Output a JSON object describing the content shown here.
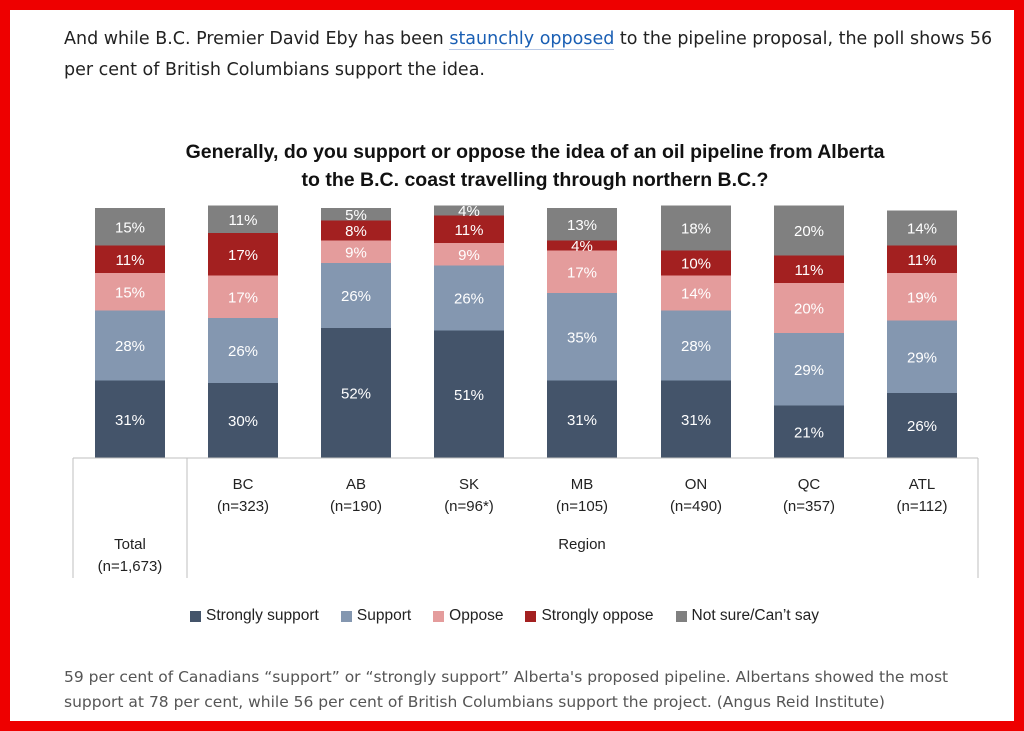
{
  "article": {
    "intro_before_link": "And while B.C. Premier David Eby has been ",
    "intro_link": "staunchly opposed",
    "intro_after_link": " to the pipeline proposal, the poll shows 56 per cent of British Columbians support the idea.",
    "caption": "59 per cent of Canadians “support” or “strongly support” Alberta's proposed pipeline. Albertans showed the most support at 78 per cent, while 56 per cent of British Columbians support the project. (Angus Reid Institute)"
  },
  "chart_data": {
    "type": "bar",
    "stacked": true,
    "title": "Generally, do you support or oppose the idea of an oil pipeline from Alberta to the B.C. coast travelling through northern B.C.?",
    "title_lines": [
      "Generally, do you support or oppose the idea of an oil pipeline from Alberta",
      "to the B.C. coast travelling through northern B.C.?"
    ],
    "categories": [
      "Total",
      "BC",
      "AB",
      "SK",
      "MB",
      "ON",
      "QC",
      "ATL"
    ],
    "category_samples": [
      "(n=1,673)",
      "(n=323)",
      "(n=190)",
      "(n=96*)",
      "(n=105)",
      "(n=490)",
      "(n=357)",
      "(n=112)"
    ],
    "group_label": "Region",
    "ylim": [
      0,
      100
    ],
    "legend_position": "bottom",
    "series": [
      {
        "name": "Strongly support",
        "color": "#44546a",
        "values": [
          31,
          30,
          52,
          51,
          31,
          31,
          21,
          26
        ]
      },
      {
        "name": "Support",
        "color": "#8497b0",
        "values": [
          28,
          26,
          26,
          26,
          35,
          28,
          29,
          29
        ]
      },
      {
        "name": "Oppose",
        "color": "#e49c9c",
        "values": [
          15,
          17,
          9,
          9,
          17,
          14,
          20,
          19
        ]
      },
      {
        "name": "Strongly oppose",
        "color": "#a32020",
        "values": [
          11,
          17,
          8,
          11,
          4,
          10,
          11,
          11
        ]
      },
      {
        "name": "Not sure/Can’t say",
        "color": "#808080",
        "values": [
          15,
          11,
          5,
          4,
          13,
          18,
          20,
          14
        ]
      }
    ],
    "value_suffix": "%"
  }
}
